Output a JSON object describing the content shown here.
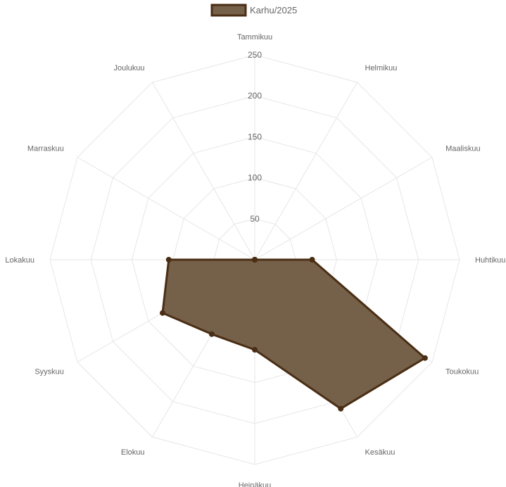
{
  "chart_data": {
    "type": "radar",
    "legend_position": "top",
    "grid": true,
    "categories": [
      "Tammikuu",
      "Helmikuu",
      "Maaliskuu",
      "Huhtikuu",
      "Toukokuu",
      "Kesäkuu",
      "Heinäkuu",
      "Elokuu",
      "Syyskuu",
      "Lokakuu",
      "Marraskuu",
      "Joulukuu"
    ],
    "ticks": [
      "50",
      "100",
      "150",
      "200",
      "250"
    ],
    "rlim": [
      0,
      250
    ],
    "series": [
      {
        "name": "Karhu/2025",
        "values": [
          0,
          0,
          0,
          70,
          240,
          210,
          110,
          105,
          130,
          105,
          0,
          0
        ],
        "fill_color": "#75604a",
        "line_color": "#4a2e14"
      }
    ]
  }
}
